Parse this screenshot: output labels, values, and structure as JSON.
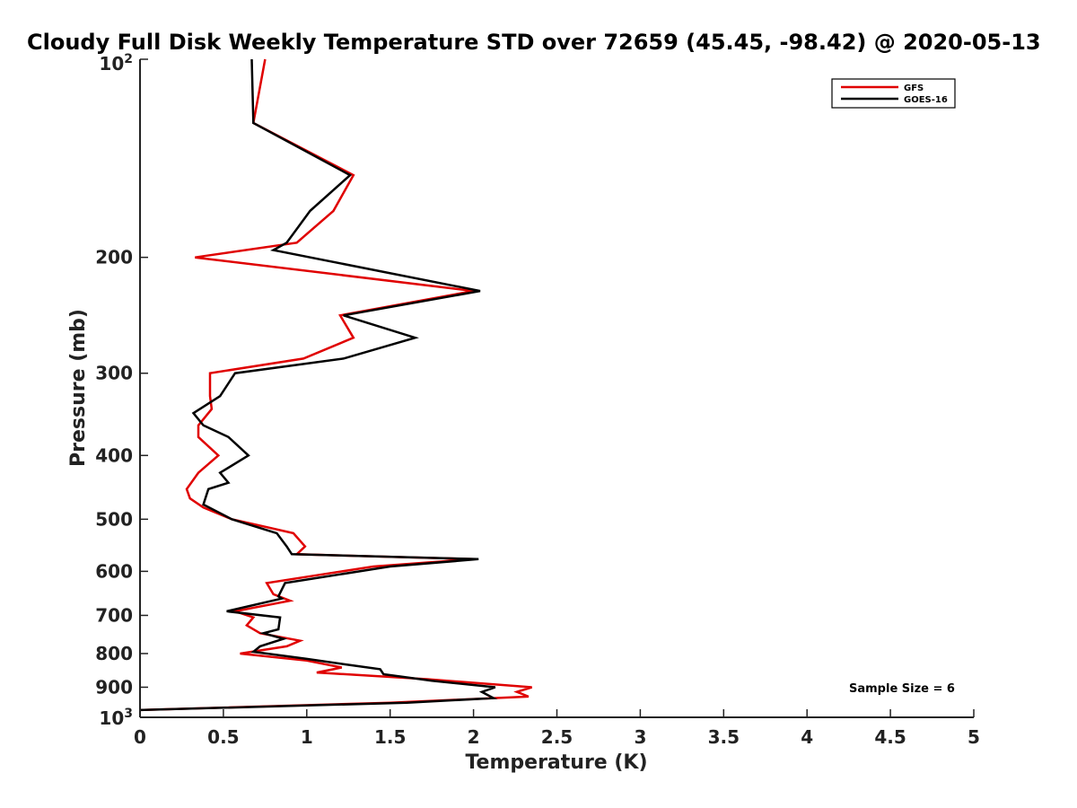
{
  "chart_data": {
    "type": "line",
    "title": "Cloudy Full Disk Weekly Temperature STD over 72659 (45.45, -98.42) @ 2020-05-13",
    "xlabel": "Temperature (K)",
    "ylabel": "Pressure (mb)",
    "xlim": [
      0,
      5
    ],
    "ylim": [
      100,
      1000
    ],
    "y_scale": "log",
    "y_reversed": true,
    "x_ticks": [
      "0",
      "0.5",
      "1",
      "1.5",
      "2",
      "2.5",
      "3",
      "3.5",
      "4",
      "4.5",
      "5"
    ],
    "y_ticks": [
      {
        "value": 100,
        "base": "10",
        "exp": "2"
      },
      {
        "value": 200,
        "label": "200"
      },
      {
        "value": 300,
        "label": "300"
      },
      {
        "value": 400,
        "label": "400"
      },
      {
        "value": 500,
        "label": "500"
      },
      {
        "value": 600,
        "label": "600"
      },
      {
        "value": 700,
        "label": "700"
      },
      {
        "value": 800,
        "label": "800"
      },
      {
        "value": 900,
        "label": "900"
      },
      {
        "value": 1000,
        "base": "10",
        "exp": "3"
      }
    ],
    "grid": false,
    "legend_position": "top-right",
    "annotation": "Sample Size = 6",
    "series": [
      {
        "name": "GFS",
        "color": "#e00000",
        "points": [
          [
            0.75,
            100
          ],
          [
            0.68,
            125
          ],
          [
            1.28,
            150
          ],
          [
            1.16,
            170
          ],
          [
            0.94,
            190
          ],
          [
            0.33,
            200
          ],
          [
            2.0,
            225
          ],
          [
            1.2,
            245
          ],
          [
            1.28,
            265
          ],
          [
            0.98,
            285
          ],
          [
            0.42,
            300
          ],
          [
            0.42,
            325
          ],
          [
            0.43,
            340
          ],
          [
            0.35,
            360
          ],
          [
            0.35,
            375
          ],
          [
            0.47,
            400
          ],
          [
            0.35,
            425
          ],
          [
            0.28,
            450
          ],
          [
            0.3,
            465
          ],
          [
            0.38,
            480
          ],
          [
            0.55,
            500
          ],
          [
            0.92,
            525
          ],
          [
            0.99,
            550
          ],
          [
            0.94,
            565
          ],
          [
            2.0,
            575
          ],
          [
            1.4,
            590
          ],
          [
            0.76,
            625
          ],
          [
            0.8,
            650
          ],
          [
            0.9,
            665
          ],
          [
            0.57,
            690
          ],
          [
            0.68,
            705
          ],
          [
            0.64,
            725
          ],
          [
            0.72,
            745
          ],
          [
            0.96,
            765
          ],
          [
            0.88,
            780
          ],
          [
            0.6,
            800
          ],
          [
            1.0,
            820
          ],
          [
            1.21,
            840
          ],
          [
            1.06,
            855
          ],
          [
            1.72,
            875
          ],
          [
            2.35,
            900
          ],
          [
            2.26,
            915
          ],
          [
            2.33,
            930
          ],
          [
            1.5,
            950
          ],
          [
            0.0,
            975
          ]
        ]
      },
      {
        "name": "GOES-16",
        "color": "#000000",
        "points": [
          [
            0.67,
            100
          ],
          [
            0.68,
            125
          ],
          [
            1.26,
            150
          ],
          [
            1.02,
            170
          ],
          [
            0.88,
            190
          ],
          [
            0.8,
            195
          ],
          [
            2.04,
            225
          ],
          [
            1.22,
            245
          ],
          [
            1.65,
            265
          ],
          [
            1.22,
            285
          ],
          [
            0.57,
            300
          ],
          [
            0.48,
            325
          ],
          [
            0.32,
            345
          ],
          [
            0.38,
            360
          ],
          [
            0.53,
            375
          ],
          [
            0.65,
            400
          ],
          [
            0.48,
            425
          ],
          [
            0.53,
            440
          ],
          [
            0.41,
            450
          ],
          [
            0.38,
            475
          ],
          [
            0.55,
            500
          ],
          [
            0.82,
            525
          ],
          [
            0.88,
            550
          ],
          [
            0.91,
            565
          ],
          [
            2.03,
            575
          ],
          [
            1.5,
            590
          ],
          [
            0.87,
            625
          ],
          [
            0.83,
            655
          ],
          [
            0.85,
            660
          ],
          [
            0.52,
            690
          ],
          [
            0.84,
            705
          ],
          [
            0.83,
            735
          ],
          [
            0.74,
            745
          ],
          [
            0.86,
            760
          ],
          [
            0.72,
            780
          ],
          [
            0.68,
            795
          ],
          [
            1.0,
            815
          ],
          [
            1.22,
            830
          ],
          [
            1.44,
            845
          ],
          [
            1.46,
            860
          ],
          [
            1.75,
            880
          ],
          [
            2.13,
            900
          ],
          [
            2.05,
            915
          ],
          [
            2.12,
            935
          ],
          [
            1.6,
            950
          ],
          [
            0.0,
            975
          ]
        ]
      }
    ]
  }
}
